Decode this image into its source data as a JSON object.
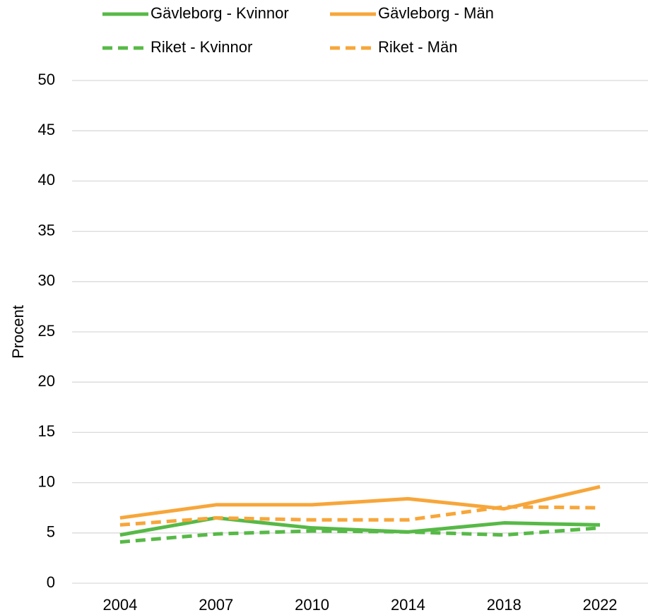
{
  "chart_data": {
    "type": "line",
    "y_label": "Procent",
    "categories": [
      "2004",
      "2007",
      "2010",
      "2014",
      "2018",
      "2022"
    ],
    "series": [
      {
        "name": "Gävleborg - Kvinnor",
        "color": "#57b947",
        "dashed": false,
        "values": [
          4.8,
          6.5,
          5.5,
          5.1,
          6.0,
          5.8
        ]
      },
      {
        "name": "Gävleborg - Män",
        "color": "#f7a63a",
        "dashed": false,
        "values": [
          6.5,
          7.8,
          7.8,
          8.4,
          7.4,
          9.6
        ]
      },
      {
        "name": "Riket - Kvinnor",
        "color": "#57b947",
        "dashed": true,
        "values": [
          4.1,
          4.9,
          5.2,
          5.1,
          4.8,
          5.5
        ]
      },
      {
        "name": "Riket - Män",
        "color": "#f7a63a",
        "dashed": true,
        "values": [
          5.8,
          6.5,
          6.3,
          6.3,
          7.6,
          7.5
        ]
      }
    ],
    "ylim": [
      0,
      50
    ],
    "yticks": [
      0,
      5,
      10,
      15,
      20,
      25,
      30,
      35,
      40,
      45,
      50
    ],
    "grid": true
  }
}
